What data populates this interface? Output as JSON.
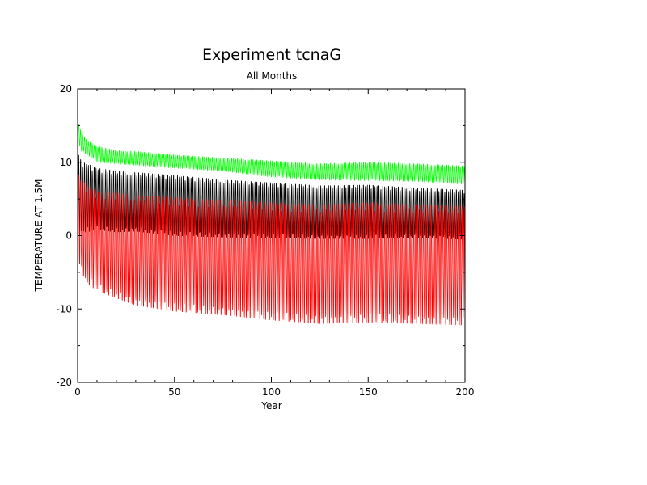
{
  "chart_data": {
    "type": "line",
    "title": "Experiment tcnaG",
    "subtitle": "All Months",
    "xlabel": "Year",
    "ylabel": "TEMPERATURE AT 1.5M",
    "xlim": [
      0,
      200
    ],
    "ylim": [
      -20,
      20
    ],
    "x_ticks": [
      0,
      50,
      100,
      150,
      200
    ],
    "y_ticks": [
      -20,
      -10,
      0,
      10,
      20
    ],
    "grid": false,
    "legend": "none",
    "sampling": "monthly",
    "series": [
      {
        "color": "#00ff00",
        "envelope": {
          "year": [
            0,
            2,
            5,
            10,
            20,
            30,
            50,
            75,
            100,
            125,
            150,
            175,
            200
          ],
          "max": [
            15.8,
            14.0,
            13.0,
            12.2,
            11.6,
            11.5,
            11.0,
            10.6,
            10.2,
            9.8,
            10.0,
            9.8,
            9.5
          ],
          "min": [
            13.0,
            11.5,
            11.0,
            10.0,
            9.8,
            9.6,
            9.2,
            8.8,
            8.0,
            7.6,
            7.5,
            7.4,
            7.0
          ]
        }
      },
      {
        "color": "#000000",
        "envelope": {
          "year": [
            0,
            2,
            5,
            10,
            20,
            30,
            50,
            75,
            100,
            125,
            150,
            175,
            200
          ],
          "max": [
            11.5,
            10.0,
            9.8,
            9.2,
            8.8,
            8.6,
            8.2,
            7.6,
            7.2,
            6.8,
            6.9,
            6.5,
            6.2
          ],
          "min": [
            -0.5,
            0.5,
            0.5,
            0.8,
            0.5,
            0.6,
            0.0,
            -0.2,
            -0.3,
            -0.4,
            -0.4,
            -0.3,
            -0.5
          ]
        }
      },
      {
        "color": "#ff0000",
        "envelope": {
          "year": [
            0,
            2,
            5,
            10,
            20,
            30,
            50,
            75,
            100,
            125,
            150,
            175,
            200
          ],
          "max": [
            8.5,
            7.5,
            6.8,
            6.0,
            5.8,
            5.5,
            5.2,
            4.8,
            4.5,
            4.2,
            4.5,
            4.2,
            4.0
          ],
          "min": [
            -2.5,
            -5.0,
            -6.5,
            -7.5,
            -8.5,
            -9.5,
            -10.3,
            -10.8,
            -11.5,
            -12.0,
            -11.8,
            -12.0,
            -12.2
          ]
        }
      }
    ]
  }
}
